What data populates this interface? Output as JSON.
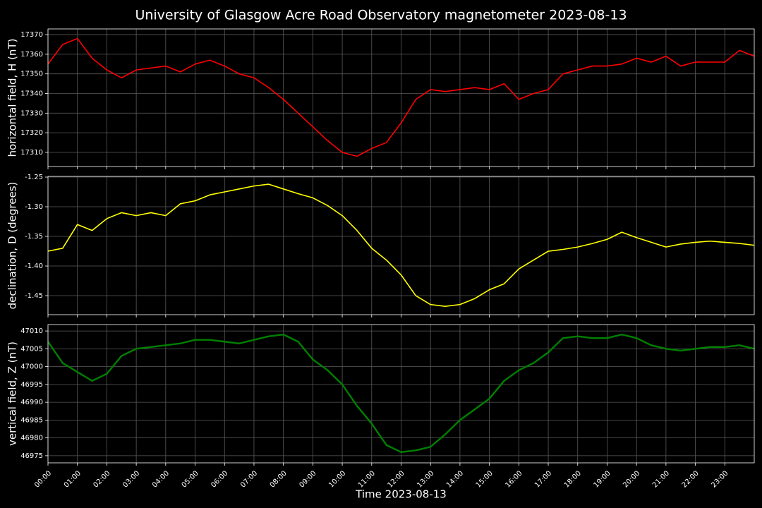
{
  "title": "University of Glasgow Acre Road Observatory magnetometer 2023-08-13",
  "chart_data": [
    {
      "type": "line",
      "ylabel": "horizontal field, H (nT)",
      "x": [
        0,
        0.5,
        1,
        1.5,
        2,
        2.5,
        3,
        3.5,
        4,
        4.5,
        5,
        5.5,
        6,
        6.5,
        7,
        7.5,
        8,
        8.5,
        9,
        9.5,
        10,
        10.5,
        11,
        11.5,
        12,
        12.5,
        13,
        13.5,
        14,
        14.5,
        15,
        15.5,
        16,
        16.5,
        17,
        17.5,
        18,
        18.5,
        19,
        19.5,
        20,
        20.5,
        21,
        21.5,
        22,
        22.5,
        23,
        23.5,
        24
      ],
      "series": [
        {
          "color": "#ff0000",
          "values": [
            17355,
            17365,
            17368,
            17358,
            17352,
            17348,
            17352,
            17353,
            17354,
            17351,
            17355,
            17357,
            17354,
            17350,
            17348,
            17343,
            17337,
            17330,
            17323,
            17316,
            17310,
            17308,
            17312,
            17315,
            17325,
            17337,
            17342,
            17341,
            17342,
            17343,
            17342,
            17345,
            17337,
            17340,
            17342,
            17350,
            17352,
            17354,
            17354,
            17355,
            17358,
            17356,
            17359,
            17354,
            17356,
            17356,
            17356,
            17362,
            17359
          ]
        }
      ],
      "xlim": [
        0,
        24
      ],
      "ylim": [
        17302.8,
        17372.9
      ],
      "yticks": [
        17310,
        17320,
        17330,
        17340,
        17350,
        17360,
        17370
      ],
      "grid": true
    },
    {
      "type": "line",
      "ylabel": "declination, D (degrees)",
      "x": [
        0,
        0.5,
        1,
        1.5,
        2,
        2.5,
        3,
        3.5,
        4,
        4.5,
        5,
        5.5,
        6,
        6.5,
        7,
        7.5,
        8,
        8.5,
        9,
        9.5,
        10,
        10.5,
        11,
        11.5,
        12,
        12.5,
        13,
        13.5,
        14,
        14.5,
        15,
        15.5,
        16,
        16.5,
        17,
        17.5,
        18,
        18.5,
        19,
        19.5,
        20,
        20.5,
        21,
        21.5,
        22,
        22.5,
        23,
        23.5,
        24
      ],
      "series": [
        {
          "color": "#ffff00",
          "values": [
            -1.375,
            -1.37,
            -1.33,
            -1.34,
            -1.32,
            -1.31,
            -1.315,
            -1.31,
            -1.315,
            -1.295,
            -1.29,
            -1.28,
            -1.275,
            -1.27,
            -1.265,
            -1.262,
            -1.27,
            -1.278,
            -1.285,
            -1.298,
            -1.315,
            -1.34,
            -1.37,
            -1.39,
            -1.415,
            -1.45,
            -1.465,
            -1.468,
            -1.465,
            -1.455,
            -1.44,
            -1.43,
            -1.405,
            -1.39,
            -1.375,
            -1.372,
            -1.368,
            -1.362,
            -1.355,
            -1.343,
            -1.352,
            -1.36,
            -1.368,
            -1.363,
            -1.36,
            -1.358,
            -1.36,
            -1.362,
            -1.365
          ]
        }
      ],
      "xlim": [
        0,
        24
      ],
      "ylim": [
        -1.4821,
        -1.2488
      ],
      "yticks": [
        -1.25,
        {
          "value": -1.3,
          "label": "-1.30"
        },
        -1.35,
        {
          "value": -1.4,
          "label": "-1.40"
        },
        -1.45
      ],
      "grid": true
    },
    {
      "type": "line",
      "ylabel": "vertical field, Z (nT)",
      "xlabel": "Time 2023-08-13",
      "x": [
        0,
        0.5,
        1,
        1.5,
        2,
        2.5,
        3,
        3.5,
        4,
        4.5,
        5,
        5.5,
        6,
        6.5,
        7,
        7.5,
        8,
        8.5,
        9,
        9.5,
        10,
        10.5,
        11,
        11.5,
        12,
        12.5,
        13,
        13.5,
        14,
        14.5,
        15,
        15.5,
        16,
        16.5,
        17,
        17.5,
        18,
        18.5,
        19,
        19.5,
        20,
        20.5,
        21,
        21.5,
        22,
        22.5,
        23,
        23.5,
        24
      ],
      "series": [
        {
          "color": "#008000",
          "values": [
            47007,
            47001,
            46998.5,
            46996,
            46998,
            47003,
            47005,
            47005.5,
            47006,
            47006.5,
            47007.5,
            47007.5,
            47007,
            47006.5,
            47007.5,
            47008.5,
            47009,
            47007,
            47002,
            46999,
            46995,
            46989,
            46984,
            46978,
            46976,
            46976.5,
            46977.5,
            46981,
            46985,
            46988,
            46991,
            46996,
            46999,
            47001,
            47004,
            47008,
            47008.5,
            47008,
            47008,
            47009,
            47008,
            47006,
            47005,
            47004.5,
            47005,
            47005.5,
            47005.5,
            47006,
            47005
          ]
        }
      ],
      "xlim": [
        0,
        24
      ],
      "ylim": [
        46973.0,
        47011.8
      ],
      "yticks": [
        46975,
        46980,
        46985,
        46990,
        46995,
        47000,
        47005,
        47010
      ],
      "xticks": [
        {
          "value": 0,
          "label": "00:00"
        },
        {
          "value": 1,
          "label": "01:00"
        },
        {
          "value": 2,
          "label": "02:00"
        },
        {
          "value": 3,
          "label": "03:00"
        },
        {
          "value": 4,
          "label": "04:00"
        },
        {
          "value": 5,
          "label": "05:00"
        },
        {
          "value": 6,
          "label": "06:00"
        },
        {
          "value": 7,
          "label": "07:00"
        },
        {
          "value": 8,
          "label": "08:00"
        },
        {
          "value": 9,
          "label": "09:00"
        },
        {
          "value": 10,
          "label": "10:00"
        },
        {
          "value": 11,
          "label": "11:00"
        },
        {
          "value": 12,
          "label": "12:00"
        },
        {
          "value": 13,
          "label": "13:00"
        },
        {
          "value": 14,
          "label": "14:00"
        },
        {
          "value": 15,
          "label": "15:00"
        },
        {
          "value": 16,
          "label": "16:00"
        },
        {
          "value": 17,
          "label": "17:00"
        },
        {
          "value": 18,
          "label": "18:00"
        },
        {
          "value": 19,
          "label": "19:00"
        },
        {
          "value": 20,
          "label": "20:00"
        },
        {
          "value": 21,
          "label": "21:00"
        },
        {
          "value": 22,
          "label": "22:00"
        },
        {
          "value": 23,
          "label": "23:00"
        }
      ],
      "grid": true
    }
  ]
}
